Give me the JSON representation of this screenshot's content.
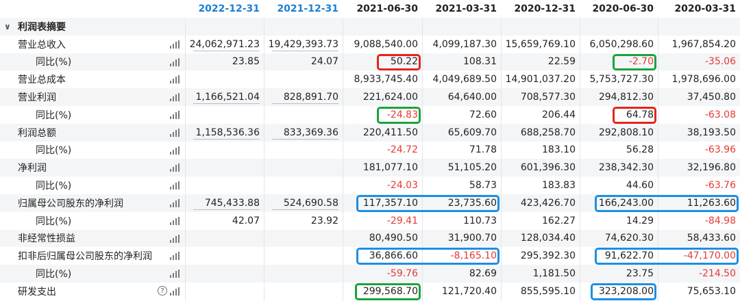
{
  "columns": [
    "2022-12-31",
    "2021-12-31",
    "2021-06-30",
    "2021-03-31",
    "2020-12-31",
    "2020-06-30",
    "2020-03-31"
  ],
  "section_title": "利润表摘要",
  "rows": [
    {
      "label": "营业总收入",
      "type": "main",
      "values": [
        "24,062,971.23",
        "19,429,393.73",
        "9,088,540.00",
        "4,099,187.30",
        "15,659,769.10",
        "6,050,298.60",
        "1,967,854.20"
      ]
    },
    {
      "label": "同比(%)",
      "type": "sub",
      "values": [
        "23.85",
        "24.07",
        "50.22",
        "108.31",
        "22.59",
        "-2.70",
        "-35.06"
      ]
    },
    {
      "label": "营业总成本",
      "type": "main",
      "values": [
        "",
        "",
        "8,933,745.40",
        "4,049,689.50",
        "14,901,037.20",
        "5,753,727.30",
        "1,978,696.00"
      ]
    },
    {
      "label": "营业利润",
      "type": "main",
      "values": [
        "1,166,521.04",
        "828,891.70",
        "221,624.00",
        "64,640.00",
        "708,577.30",
        "294,812.30",
        "37,450.80"
      ]
    },
    {
      "label": "同比(%)",
      "type": "sub",
      "values": [
        "",
        "",
        "-24.83",
        "72.60",
        "206.44",
        "64.78",
        "-63.08"
      ]
    },
    {
      "label": "利润总额",
      "type": "main",
      "values": [
        "1,158,536.36",
        "833,369.36",
        "220,411.50",
        "65,609.70",
        "688,258.70",
        "292,808.10",
        "38,193.50"
      ]
    },
    {
      "label": "同比(%)",
      "type": "sub",
      "values": [
        "",
        "",
        "-24.72",
        "71.78",
        "183.10",
        "56.28",
        "-63.96"
      ]
    },
    {
      "label": "净利润",
      "type": "main",
      "values": [
        "",
        "",
        "181,077.10",
        "51,105.20",
        "601,396.30",
        "238,342.30",
        "32,196.80"
      ]
    },
    {
      "label": "同比(%)",
      "type": "sub",
      "values": [
        "",
        "",
        "-24.03",
        "58.73",
        "183.83",
        "44.60",
        "-63.76"
      ]
    },
    {
      "label": "归属母公司股东的净利润",
      "type": "main",
      "values": [
        "745,433.88",
        "524,690.58",
        "117,357.10",
        "23,735.60",
        "423,426.70",
        "166,243.00",
        "11,263.60"
      ]
    },
    {
      "label": "同比(%)",
      "type": "sub",
      "values": [
        "42.07",
        "23.92",
        "-29.41",
        "110.73",
        "162.27",
        "14.29",
        "-84.98"
      ]
    },
    {
      "label": "非经常性损益",
      "type": "main",
      "values": [
        "",
        "",
        "80,490.50",
        "31,900.70",
        "128,034.40",
        "74,620.30",
        "58,433.60"
      ]
    },
    {
      "label": "扣非后归属母公司股东的净利润",
      "type": "main",
      "values": [
        "",
        "",
        "36,866.60",
        "-8,165.10",
        "295,392.30",
        "91,622.70",
        "-47,170.00"
      ]
    },
    {
      "label": "同比(%)",
      "type": "sub",
      "values": [
        "",
        "",
        "-59.76",
        "82.69",
        "1,181.50",
        "23.75",
        "-214.50"
      ]
    },
    {
      "label": "研发支出",
      "type": "main",
      "help": true,
      "values": [
        "",
        "",
        "299,568.70",
        "121,720.40",
        "855,595.10",
        "323,208.00",
        "75,653.10"
      ]
    }
  ],
  "colors": {
    "header_blue": "#1a7fd1",
    "negative": "#e53935",
    "box_red": "#e5231b",
    "box_green": "#18a33c",
    "box_blue": "#1a8fe3"
  }
}
